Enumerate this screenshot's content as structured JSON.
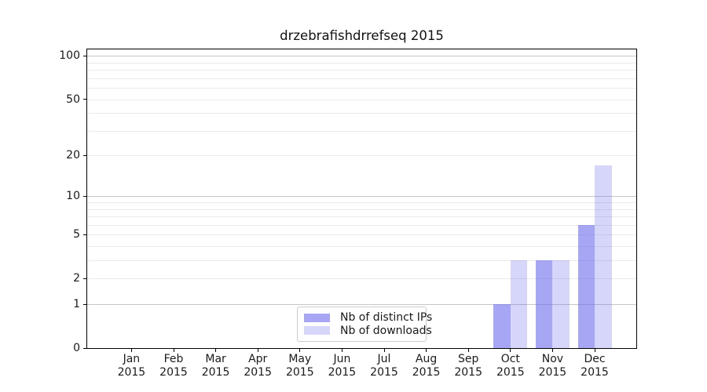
{
  "chart_data": {
    "type": "bar",
    "title": "drzebrafishdrrefseq 2015",
    "categories": [
      "Jan",
      "Feb",
      "Mar",
      "Apr",
      "May",
      "Jun",
      "Jul",
      "Aug",
      "Sep",
      "Oct",
      "Nov",
      "Dec"
    ],
    "year_label": "2015",
    "series": [
      {
        "name": "Nb of distinct IPs",
        "key": "distinct-ips",
        "color": "#6666ee",
        "alpha": 0.58,
        "values": [
          0,
          0,
          0,
          0,
          0,
          0,
          0,
          0,
          0,
          1,
          3,
          6
        ]
      },
      {
        "name": "Nb of downloads",
        "key": "downloads",
        "color": "#6666ee",
        "alpha": 0.27,
        "values": [
          0,
          0,
          0,
          0,
          0,
          0,
          0,
          0,
          0,
          3,
          3,
          17
        ]
      }
    ],
    "yscale": "log1p",
    "ylim": [
      0,
      111
    ],
    "yticks": [
      {
        "label": "100",
        "value": 100
      },
      {
        "label": "50",
        "value": 50
      },
      {
        "label": "20",
        "value": 20
      },
      {
        "label": "10",
        "value": 10
      },
      {
        "label": "5",
        "value": 5
      },
      {
        "label": "2",
        "value": 2
      },
      {
        "label": "1",
        "value": 1
      },
      {
        "label": "0",
        "value": 0
      }
    ],
    "gridlines": {
      "major": [
        1,
        10,
        100
      ],
      "minor": [
        2,
        3,
        4,
        5,
        6,
        7,
        8,
        9,
        20,
        30,
        40,
        50,
        60,
        70,
        80,
        90
      ]
    },
    "grid": true,
    "legend_position": "lower center",
    "colors": {
      "major_grid": "#c6c6c6",
      "minor_grid": "#eaeaea",
      "axis": "#000000",
      "text": "#1a1a1a"
    }
  }
}
